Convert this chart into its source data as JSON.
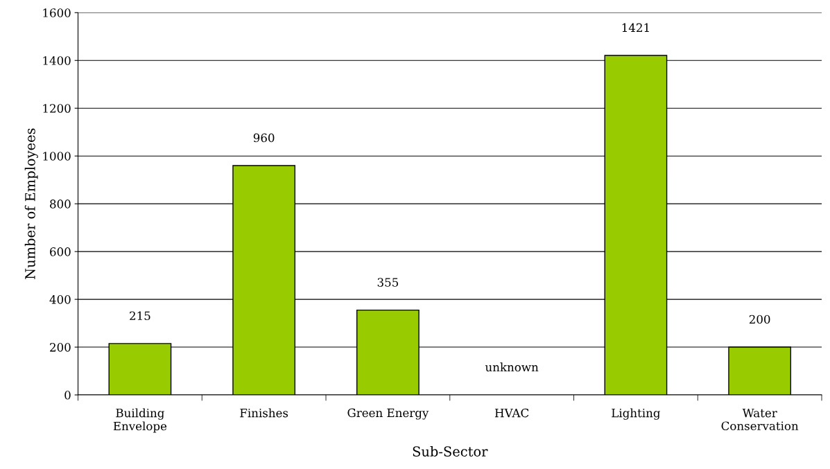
{
  "chart_data": {
    "type": "bar",
    "xlabel": "Sub-Sector",
    "ylabel": "Number of Employees",
    "categories": [
      "Building Envelope",
      "Finishes",
      "Green Energy",
      "HVAC",
      "Lighting",
      "Water Conservation"
    ],
    "values": [
      215,
      960,
      355,
      null,
      1421,
      200
    ],
    "value_labels": [
      "215",
      "960",
      "355",
      "unknown",
      "1421",
      "200"
    ],
    "color": "#99cc00",
    "ylim": [
      0,
      1600
    ],
    "yticks": [
      0,
      200,
      400,
      600,
      800,
      1000,
      1200,
      1400,
      1600
    ],
    "grid": "y"
  }
}
